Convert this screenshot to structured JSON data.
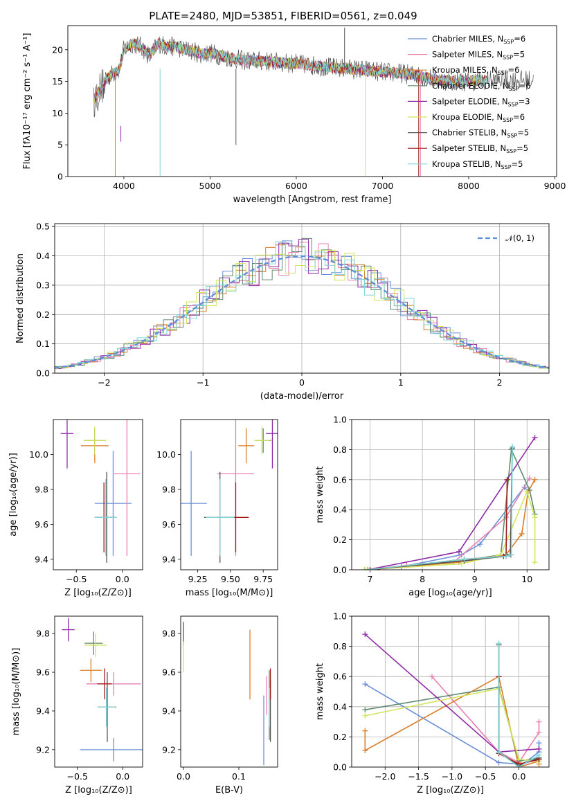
{
  "chart_data": [
    {
      "type": "line",
      "title": "PLATE=2480, MJD=53851, FIBERID=0561, z=0.049",
      "xlabel": "wavelength [Angstrom, rest frame]",
      "ylabel": "Flux [fλ10⁻¹⁷ erg cm⁻² s⁻¹ A⁻¹]",
      "xlim": [
        3350,
        9020
      ],
      "ylim": [
        0,
        23.8
      ],
      "xticks": [
        4000,
        5000,
        6000,
        7000,
        8000,
        9000
      ],
      "yticks": [
        0,
        5,
        10,
        15,
        20
      ],
      "grid": false,
      "legend_position": "top-right",
      "legend": [
        {
          "label": "Chabrier MILES, N",
          "sub": "SSP",
          "suffix": "=6",
          "color": "#6a8fd8"
        },
        {
          "label": "Salpeter MILES, N",
          "sub": "SSP",
          "suffix": "=5",
          "color": "#e87fb0"
        },
        {
          "label": "Kroupa MILES, N",
          "sub": "SSP",
          "suffix": "=6",
          "color": "#d97f2a"
        },
        {
          "label": "Chabrier ELODIE, N",
          "sub": "SSP",
          "suffix": "=6",
          "color": "#5f8a6e"
        },
        {
          "label": "Salpeter ELODIE, N",
          "sub": "SSP",
          "suffix": "=3",
          "color": "#8e2aa8"
        },
        {
          "label": "Kroupa ELODIE, N",
          "sub": "SSP",
          "suffix": "=6",
          "color": "#d4e45a"
        },
        {
          "label": "Chabrier STELIB, N",
          "sub": "SSP",
          "suffix": "=5",
          "color": "#555555"
        },
        {
          "label": "Salpeter STELIB, N",
          "sub": "SSP",
          "suffix": "=5",
          "color": "#a01c1c"
        },
        {
          "label": "Kroupa STELIB, N",
          "sub": "SSP",
          "suffix": "=5",
          "color": "#7fd6d6"
        }
      ],
      "series": [
        {
          "name": "Chabrier STELIB, NSSP=5",
          "x": [
            3650,
            3700,
            3800,
            3900,
            3950,
            4000,
            4100,
            4200,
            4300,
            4400,
            4500,
            4600,
            4700,
            4800,
            4900,
            5000,
            5100,
            5200,
            5300,
            5400,
            5500,
            5600,
            5700,
            5800,
            5900,
            6000,
            6100,
            6200,
            6300,
            6400,
            6500,
            6550,
            6600,
            6700,
            6800,
            6900,
            7000,
            7100,
            7200,
            7300,
            7400,
            7500,
            7600,
            7700,
            7800,
            7900,
            8000,
            8100,
            8200,
            8300,
            8400,
            8500,
            8600,
            8700,
            8800
          ],
          "y": [
            11,
            13,
            15.5,
            17,
            16,
            19,
            19.5,
            20,
            19,
            20,
            20,
            20.5,
            20,
            19.5,
            19,
            19.5,
            19,
            18.5,
            18.5,
            18,
            18.5,
            18,
            18,
            18,
            17.5,
            17.5,
            17.5,
            17.3,
            17.5,
            17,
            17,
            23,
            17,
            16.8,
            16.5,
            16.5,
            16.3,
            16.5,
            16,
            16,
            16,
            15.5,
            15.3,
            15,
            15,
            15,
            14.8,
            14.5,
            15,
            14.5,
            14.5,
            15,
            14,
            13.5,
            14
          ]
        },
        {
          "name": "Kroupa STELIB, NSSP=5",
          "x": [
            3650,
            3800,
            3950,
            4000,
            4100,
            4200,
            4300,
            4400,
            4500,
            4600,
            4700,
            4800,
            4900,
            5000,
            5200,
            5400,
            5600,
            5800,
            6000,
            6200,
            6400,
            6600,
            6800,
            7000,
            7200,
            7400,
            7600,
            7800,
            8000,
            8200
          ],
          "y": [
            12,
            15.5,
            17,
            20,
            21,
            20.5,
            19,
            21,
            20.5,
            20.5,
            20,
            19.8,
            19.3,
            19.5,
            18.8,
            18.3,
            18.2,
            18,
            17.8,
            17.5,
            17.2,
            17,
            16.8,
            16.5,
            16.3,
            16,
            15.3,
            15,
            15,
            15.2
          ]
        }
      ]
    },
    {
      "type": "bar",
      "xlabel": "(data-model)/error",
      "ylabel": "Normed distribution",
      "xlim": [
        -2.5,
        2.5
      ],
      "ylim": [
        0,
        0.51
      ],
      "xticks": [
        -2,
        -1,
        0,
        1,
        2
      ],
      "yticks": [
        0.0,
        0.1,
        0.2,
        0.3,
        0.4,
        0.5
      ],
      "grid": true,
      "legend_position": "top-right",
      "legend": [
        {
          "label": "𝒩(0, 1)",
          "color": "#5b8fd6",
          "style": "dashed"
        }
      ],
      "bin_width": 0.1,
      "reference_curve": {
        "name": "𝒩(0, 1)",
        "mean": 0,
        "std": 1
      }
    },
    {
      "type": "scatter",
      "xlabel": "Z [log₁₀(Z/Z⊙)]",
      "ylabel": "age  [log₁₀(age/yr)]",
      "xlim": [
        -0.75,
        0.22
      ],
      "ylim": [
        9.34,
        10.2
      ],
      "xticks": [
        -0.5,
        0.0
      ],
      "xtick_labels": [
        "−0.5",
        "0.0"
      ],
      "yticks": [
        9.4,
        9.6,
        9.8,
        10.0
      ],
      "points": [
        {
          "x": -0.1,
          "y": 9.72,
          "xerr": 0.2,
          "yerr": 0.3,
          "color": "#6a8fd8"
        },
        {
          "x": 0.05,
          "y": 9.89,
          "xerr": 0.14,
          "yerr": 0.47,
          "color": "#e87fb0"
        },
        {
          "x": -0.3,
          "y": 10.05,
          "xerr": 0.15,
          "yerr": 0.1,
          "color": "#d97f2a"
        },
        {
          "x": -0.3,
          "y": 10.08,
          "xerr": 0.12,
          "yerr": 0.07,
          "color": "#5f8a6e"
        },
        {
          "x": -0.6,
          "y": 10.12,
          "xerr": 0.07,
          "yerr": 0.2,
          "color": "#8e2aa8"
        },
        {
          "x": -0.3,
          "y": 10.08,
          "xerr": 0.12,
          "yerr": 0.08,
          "color": "#d4e45a"
        },
        {
          "x": -0.17,
          "y": 9.64,
          "xerr": 0.1,
          "yerr": 0.26,
          "color": "#555555"
        },
        {
          "x": -0.2,
          "y": 9.64,
          "xerr": 0.1,
          "yerr": 0.2,
          "color": "#a01c1c"
        },
        {
          "x": -0.18,
          "y": 9.64,
          "xerr": 0.12,
          "yerr": 0.22,
          "color": "#7fd6d6"
        }
      ]
    },
    {
      "type": "scatter",
      "xlabel": "mass [log₁₀(M/M⊙)]",
      "xlim": [
        9.12,
        9.86
      ],
      "ylim": [
        9.34,
        10.2
      ],
      "xticks": [
        9.25,
        9.5,
        9.75
      ],
      "yticks": [
        9.4,
        9.6,
        9.8,
        10.0
      ],
      "points": [
        {
          "x": 9.2,
          "y": 9.72,
          "xerr": 0.12,
          "yerr": 0.3,
          "color": "#6a8fd8"
        },
        {
          "x": 9.54,
          "y": 9.89,
          "xerr": 0.14,
          "yerr": 0.47,
          "color": "#e87fb0"
        },
        {
          "x": 9.62,
          "y": 10.05,
          "xerr": 0.06,
          "yerr": 0.1,
          "color": "#d97f2a"
        },
        {
          "x": 9.75,
          "y": 10.08,
          "xerr": 0.06,
          "yerr": 0.07,
          "color": "#5f8a6e"
        },
        {
          "x": 9.82,
          "y": 10.12,
          "xerr": 0.05,
          "yerr": 0.2,
          "color": "#8e2aa8"
        },
        {
          "x": 9.74,
          "y": 10.08,
          "xerr": 0.06,
          "yerr": 0.08,
          "color": "#d4e45a"
        },
        {
          "x": 9.42,
          "y": 9.64,
          "xerr": 0.12,
          "yerr": 0.26,
          "color": "#555555"
        },
        {
          "x": 9.54,
          "y": 9.64,
          "xerr": 0.1,
          "yerr": 0.2,
          "color": "#a01c1c"
        },
        {
          "x": 9.42,
          "y": 9.64,
          "xerr": 0.11,
          "yerr": 0.22,
          "color": "#7fd6d6"
        }
      ]
    },
    {
      "type": "line",
      "xlabel": "age  [log₁₀(age/yr)]",
      "ylabel": "mass weight",
      "xlim": [
        6.65,
        10.42
      ],
      "ylim": [
        0,
        1.0
      ],
      "xticks": [
        7,
        8,
        9,
        10
      ],
      "yticks": [
        0.0,
        0.2,
        0.4,
        0.6,
        0.8,
        1.0
      ],
      "grid": true,
      "series": [
        {
          "name": "Chabrier MILES, NSSP=6",
          "x": [
            6.95,
            7.6,
            8.75,
            9.1,
            9.95,
            10.02
          ],
          "y": [
            0.0,
            0.02,
            0.1,
            0.17,
            0.55,
            0.52
          ],
          "color": "#6a8fd8"
        },
        {
          "name": "Salpeter MILES, NSSP=5",
          "x": [
            6.9,
            7.7,
            8.6,
            9.6,
            10.05
          ],
          "y": [
            0.0,
            0.03,
            0.05,
            0.35,
            0.61
          ],
          "color": "#e87fb0"
        },
        {
          "name": "Kroupa MILES, NSSP=6",
          "x": [
            6.95,
            8.7,
            9.6,
            9.9,
            10.02,
            10.15
          ],
          "y": [
            0.0,
            0.05,
            0.1,
            0.24,
            0.52,
            0.6
          ],
          "color": "#d97f2a"
        },
        {
          "name": "Chabrier ELODIE, NSSP=6",
          "x": [
            6.9,
            8.8,
            9.5,
            9.7,
            10.05,
            10.15
          ],
          "y": [
            0.0,
            0.06,
            0.1,
            0.8,
            0.53,
            0.37
          ],
          "color": "#5f8a6e"
        },
        {
          "name": "Salpeter ELODIE, NSSP=3",
          "x": [
            6.95,
            8.7,
            10.15
          ],
          "y": [
            0.0,
            0.12,
            0.88
          ],
          "color": "#8e2aa8"
        },
        {
          "name": "Kroupa ELODIE, NSSP=6",
          "x": [
            6.9,
            8.75,
            9.5,
            10.0,
            10.15,
            10.15
          ],
          "y": [
            0.0,
            0.04,
            0.1,
            0.52,
            0.35,
            0.05
          ],
          "color": "#d4e45a"
        },
        {
          "name": "Chabrier STELIB, NSSP=5",
          "x": [
            6.95,
            8.8,
            9.6,
            9.68,
            9.72
          ],
          "y": [
            0.0,
            0.06,
            0.09,
            0.1,
            0.81
          ],
          "color": "#555555"
        },
        {
          "name": "Salpeter STELIB, NSSP=5",
          "x": [
            7.0,
            8.8,
            9.55,
            9.6,
            9.62
          ],
          "y": [
            0.0,
            0.07,
            0.09,
            0.1,
            0.6
          ],
          "color": "#a01c1c"
        },
        {
          "name": "Kroupa STELIB, NSSP=5",
          "x": [
            6.95,
            8.8,
            9.6,
            9.7,
            9.72
          ],
          "y": [
            0.0,
            0.07,
            0.09,
            0.1,
            0.82
          ],
          "color": "#7fd6d6"
        }
      ]
    },
    {
      "type": "scatter",
      "xlabel": "Z [log₁₀(Z/Z⊙)]",
      "ylabel": "mass [log₁₀(M/M⊙)]",
      "xlim": [
        -0.75,
        0.22
      ],
      "ylim": [
        9.11,
        9.89
      ],
      "xticks": [
        -0.5,
        0.0
      ],
      "xtick_labels": [
        "−0.5",
        "0.0"
      ],
      "yticks": [
        9.2,
        9.4,
        9.6,
        9.8
      ],
      "points": [
        {
          "x": -0.1,
          "y": 9.2,
          "xerr": 0.37,
          "yerr": 0.06,
          "color": "#6a8fd8"
        },
        {
          "x": -0.1,
          "y": 9.54,
          "xerr": 0.3,
          "yerr": 0.06,
          "color": "#e87fb0"
        },
        {
          "x": -0.35,
          "y": 9.61,
          "xerr": 0.12,
          "yerr": 0.06,
          "color": "#d97f2a"
        },
        {
          "x": -0.32,
          "y": 9.75,
          "xerr": 0.1,
          "yerr": 0.06,
          "color": "#5f8a6e"
        },
        {
          "x": -0.6,
          "y": 9.82,
          "xerr": 0.07,
          "yerr": 0.06,
          "color": "#8e2aa8"
        },
        {
          "x": -0.3,
          "y": 9.74,
          "xerr": 0.12,
          "yerr": 0.06,
          "color": "#d4e45a"
        },
        {
          "x": -0.17,
          "y": 9.42,
          "xerr": 0.1,
          "yerr": 0.18,
          "color": "#555555"
        },
        {
          "x": -0.2,
          "y": 9.54,
          "xerr": 0.08,
          "yerr": 0.08,
          "color": "#a01c1c"
        },
        {
          "x": -0.18,
          "y": 9.42,
          "xerr": 0.1,
          "yerr": 0.1,
          "color": "#7fd6d6"
        }
      ]
    },
    {
      "type": "scatter",
      "xlabel": "E(B-V)",
      "xlim": [
        -0.005,
        0.17
      ],
      "ylim": [
        9.11,
        9.89
      ],
      "xticks": [
        0.0,
        0.1
      ],
      "yticks": [
        9.2,
        9.4,
        9.6,
        9.8
      ],
      "points": [
        {
          "x": 0.145,
          "y": 9.3,
          "yerr": 0.18,
          "color": "#6a8fd8"
        },
        {
          "x": 0.15,
          "y": 9.48,
          "yerr": 0.1,
          "color": "#e87fb0"
        },
        {
          "x": 0.12,
          "y": 9.64,
          "yerr": 0.18,
          "color": "#d97f2a"
        },
        {
          "x": 0.155,
          "y": 9.43,
          "yerr": 0.18,
          "color": "#5f8a6e"
        },
        {
          "x": 0.0,
          "y": 9.8,
          "yerr": 0.06,
          "color": "#8e2aa8"
        },
        {
          "x": 0.0,
          "y": 9.68,
          "yerr": 0.08,
          "color": "#d4e45a"
        },
        {
          "x": 0.157,
          "y": 9.4,
          "yerr": 0.16,
          "color": "#555555"
        },
        {
          "x": 0.157,
          "y": 9.54,
          "yerr": 0.08,
          "color": "#a01c1c"
        },
        {
          "x": 0.155,
          "y": 9.42,
          "yerr": 0.1,
          "color": "#7fd6d6"
        }
      ]
    },
    {
      "type": "line",
      "xlabel": "Z [log₁₀(Z/Z⊙)]",
      "ylabel": "mass weight",
      "xlim": [
        -2.5,
        0.45
      ],
      "ylim": [
        0,
        1.0
      ],
      "xticks": [
        -2.0,
        -1.5,
        -1.0,
        -0.5,
        0.0
      ],
      "xtick_labels": [
        "−2.0",
        "−1.5",
        "−1.0",
        "−0.5",
        "0.0"
      ],
      "yticks": [
        0.0,
        0.2,
        0.4,
        0.6,
        0.8,
        1.0
      ],
      "grid": true,
      "series": [
        {
          "name": "Chabrier MILES, NSSP=6",
          "x": [
            -2.3,
            -0.3,
            0.0,
            0.0,
            0.3,
            0.3
          ],
          "y": [
            0.55,
            0.03,
            0.02,
            0.0,
            0.1,
            0.16
          ],
          "color": "#6a8fd8"
        },
        {
          "name": "Salpeter MILES, NSSP=5",
          "x": [
            -1.3,
            -0.3,
            0.0,
            0.3,
            0.3
          ],
          "y": [
            0.6,
            0.1,
            0.03,
            0.23,
            0.3
          ],
          "color": "#e87fb0"
        },
        {
          "name": "Kroupa MILES, NSSP=6",
          "x": [
            -2.3,
            -2.3,
            -0.3,
            0.0,
            0.3,
            0.3
          ],
          "y": [
            0.24,
            0.11,
            0.6,
            0.0,
            0.04,
            0.02
          ],
          "color": "#d97f2a"
        },
        {
          "name": "Chabrier ELODIE, NSSP=6",
          "x": [
            -2.3,
            -0.3,
            0.0,
            0.3
          ],
          "y": [
            0.38,
            0.53,
            0.04,
            0.06
          ],
          "color": "#5f8a6e"
        },
        {
          "name": "Salpeter ELODIE, NSSP=3",
          "x": [
            -2.3,
            -0.3,
            0.3
          ],
          "y": [
            0.88,
            0.1,
            0.12
          ],
          "color": "#8e2aa8"
        },
        {
          "name": "Kroupa ELODIE, NSSP=6",
          "x": [
            -2.3,
            -0.3,
            0.0,
            0.3
          ],
          "y": [
            0.34,
            0.52,
            0.05,
            0.04
          ],
          "color": "#d4e45a"
        },
        {
          "name": "Chabrier STELIB, NSSP=5",
          "x": [
            -0.3,
            -0.3,
            0.0,
            0.3
          ],
          "y": [
            0.81,
            0.1,
            0.01,
            0.06
          ],
          "color": "#555555"
        },
        {
          "name": "Salpeter STELIB, NSSP=5",
          "x": [
            -0.3,
            -0.3,
            0.0,
            0.3
          ],
          "y": [
            0.6,
            0.09,
            0.02,
            0.05
          ],
          "color": "#a01c1c"
        },
        {
          "name": "Kroupa STELIB, NSSP=5",
          "x": [
            -0.3,
            -0.3,
            0.0,
            0.3
          ],
          "y": [
            0.82,
            0.1,
            0.0,
            0.08
          ],
          "color": "#7fd6d6"
        }
      ]
    }
  ]
}
